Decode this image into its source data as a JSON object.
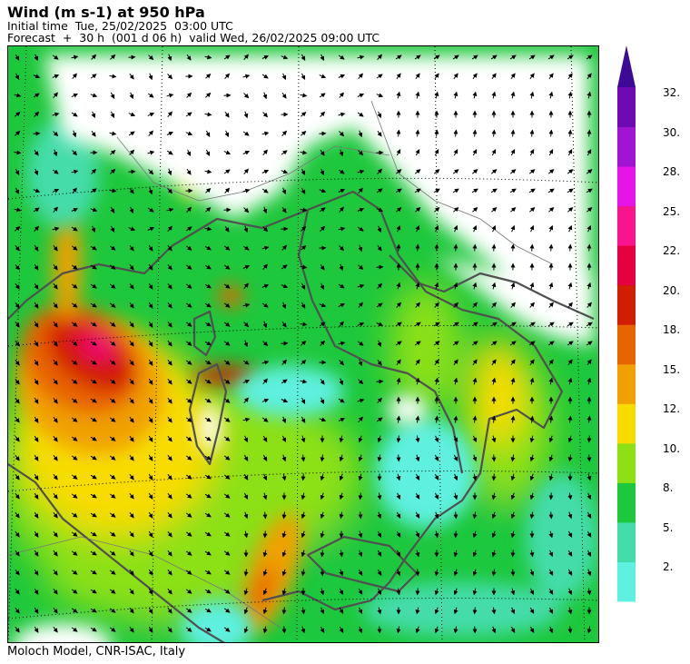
{
  "header": {
    "title": "Wind (m s-1) at 950 hPa",
    "initial_time": "Initial time  Tue, 25/02/2025  03:00 UTC",
    "forecast": "Forecast  +  30 h  (001 d 06 h)  valid Wed, 26/02/2025 09:00 UTC"
  },
  "footer": {
    "credit": "Moloch Model, CNR-ISAC, Italy"
  },
  "colorbar": {
    "labels": [
      "32.",
      "30.",
      "28.",
      "25.",
      "22.",
      "20.",
      "18.",
      "15.",
      "12.",
      "10.",
      "8.",
      "5.",
      "2."
    ],
    "colors_bottom_to_top": [
      "#5ff0e0",
      "#44dcaa",
      "#1ec83c",
      "#8ce014",
      "#f8dc00",
      "#f0a000",
      "#e86400",
      "#d21e00",
      "#e60040",
      "#f8148c",
      "#e614e6",
      "#a014d2",
      "#6e0ab4"
    ],
    "arrow_color": "#3c0a96",
    "extend": "max"
  },
  "map": {
    "land_color": "#ffffff",
    "coast_color": "#505050",
    "grid_style": "dotted",
    "wind_arrow_color": "#000000"
  }
}
